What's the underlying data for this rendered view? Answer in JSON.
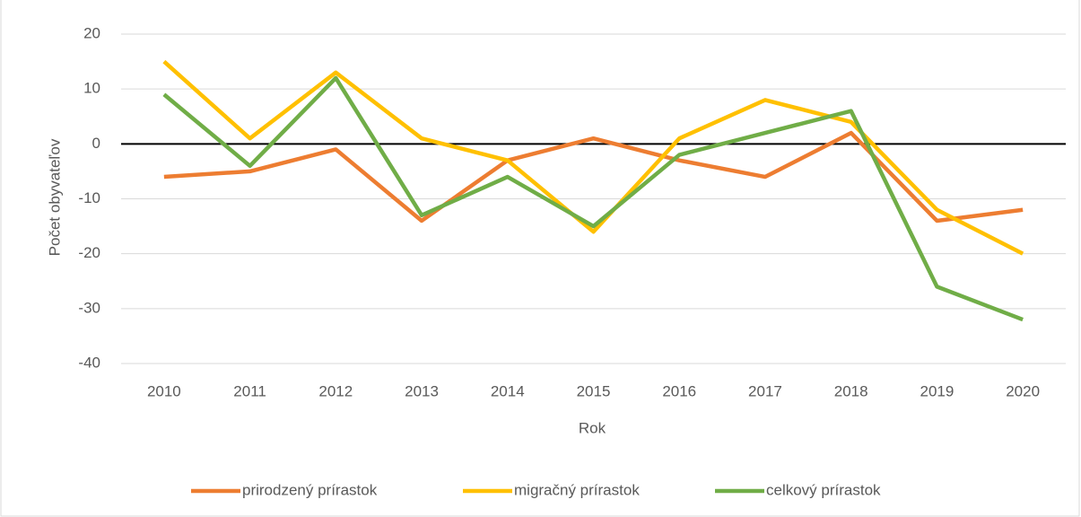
{
  "chart_data": {
    "type": "line",
    "x_label": "Rok",
    "y_label": "Počet obyvateľov",
    "categories": [
      "2010",
      "2011",
      "2012",
      "2013",
      "2014",
      "2015",
      "2016",
      "2017",
      "2018",
      "2019",
      "2020"
    ],
    "series": [
      {
        "name": "prirodzený prírastok",
        "color": "#ED7D31",
        "values": [
          -6,
          -5,
          -1,
          -14,
          -3,
          1,
          -3,
          -6,
          2,
          -14,
          -12
        ]
      },
      {
        "name": "migračný prírastok",
        "color": "#FFC000",
        "values": [
          15,
          1,
          13,
          1,
          -3,
          -16,
          1,
          8,
          4,
          -12,
          -20
        ]
      },
      {
        "name": "celkový prírastok",
        "color": "#70AD47",
        "values": [
          9,
          -4,
          12,
          -13,
          -6,
          -15,
          -2,
          2,
          6,
          -26,
          -32
        ]
      }
    ],
    "ylim": [
      -40,
      20
    ],
    "yticks": [
      -40,
      -30,
      -20,
      -10,
      0,
      10,
      20
    ],
    "grid": true,
    "legend": "bottom"
  }
}
